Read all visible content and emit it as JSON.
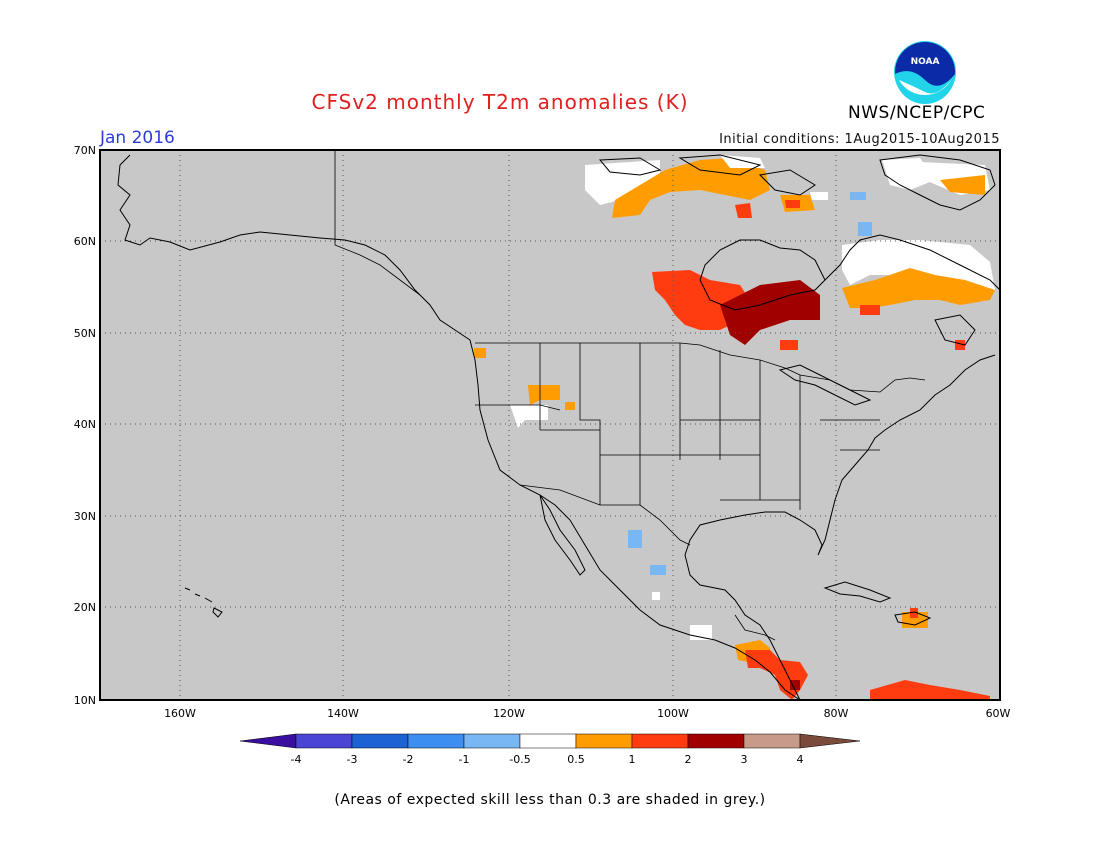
{
  "title": "CFSv2 monthly T2m anomalies (K)",
  "valid_month": "Jan 2016",
  "initial_conditions": "Initial conditions: 1Aug2015-10Aug2015",
  "agency": "NWS/NCEP/CPC",
  "logo_text": "NOAA",
  "footnote": "(Areas of expected skill less than 0.3 are shaded in grey.)",
  "colors": {
    "no_skill_grey": "#c8c8c8",
    "land_outline": "#000000",
    "grid": "#555555"
  },
  "map": {
    "lon_ticks": [
      "160W",
      "140W",
      "120W",
      "100W",
      "80W",
      "60W"
    ],
    "lat_ticks": [
      "70N",
      "60N",
      "50N",
      "40N",
      "30N",
      "20N",
      "10N"
    ]
  },
  "legend": {
    "labels": [
      "-4",
      "-3",
      "-2",
      "-1",
      "-0.5",
      "0.5",
      "1",
      "2",
      "3",
      "4"
    ],
    "colors": [
      "#3a0fa0",
      "#4b45d6",
      "#1c62d4",
      "#3c8ef0",
      "#78b6f4",
      "#ffffff",
      "#ff9c00",
      "#ff3c10",
      "#a00000",
      "#c89a8a",
      "#7a4a3a"
    ]
  },
  "anomaly_regions": [
    {
      "region": "Northern Canada / Arctic coast",
      "category": "0.5 to 1"
    },
    {
      "region": "Southern Hudson Bay / Ontario",
      "category": "1 to 3"
    },
    {
      "region": "Labrador / Quebec",
      "category": "0.5 to 1"
    },
    {
      "region": "Central America",
      "category": "0.5 to 2"
    },
    {
      "region": "Northern South America",
      "category": "1 to 3"
    },
    {
      "region": "Northern Mexico",
      "category": "-1 to -0.5"
    }
  ]
}
